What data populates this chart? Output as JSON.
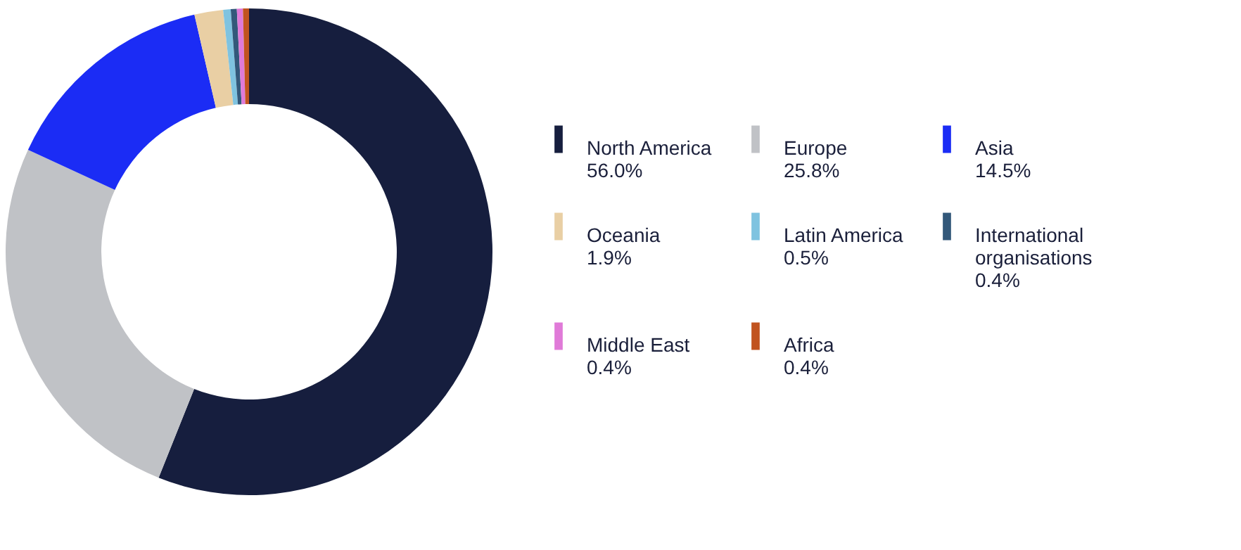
{
  "chart_data": {
    "type": "donut",
    "categories": [
      "North America",
      "Europe",
      "Asia",
      "Oceania",
      "Latin America",
      "International organisations",
      "Middle East",
      "Africa"
    ],
    "values": [
      56.0,
      25.8,
      14.5,
      1.9,
      0.5,
      0.4,
      0.4,
      0.4
    ],
    "colors": [
      "#161e3e",
      "#c0c2c6",
      "#1b2cf5",
      "#e9cfa4",
      "#7fc3e0",
      "#33587a",
      "#e07ad8",
      "#c1531f"
    ],
    "value_labels": [
      "56.0%",
      "25.8%",
      "14.5%",
      "1.9%",
      "0.5%",
      "0.4%",
      "0.4%",
      "0.4%"
    ],
    "legend": "right"
  }
}
